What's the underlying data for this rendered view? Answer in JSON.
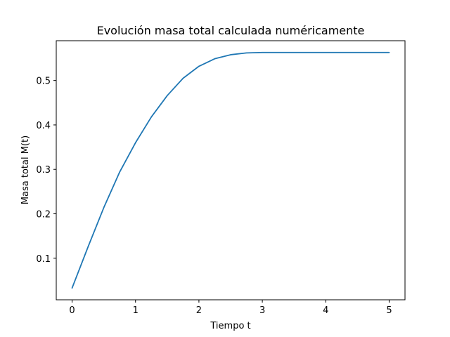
{
  "chart_data": {
    "type": "line",
    "title": "Evolución masa total calculada numéricamente",
    "xlabel": "Tiempo t",
    "ylabel": "Masa total M(t)",
    "xlim": [
      -0.25,
      5.25
    ],
    "ylim": [
      0.0065,
      0.5895
    ],
    "x_ticks": [
      0,
      1,
      2,
      3,
      4,
      5
    ],
    "x_tick_labels": [
      "0",
      "1",
      "2",
      "3",
      "4",
      "5"
    ],
    "y_ticks": [
      0.1,
      0.2,
      0.3,
      0.4,
      0.5
    ],
    "y_tick_labels": [
      "0.1",
      "0.2",
      "0.3",
      "0.4",
      "0.5"
    ],
    "grid": false,
    "series": [
      {
        "color": "#1f77b4",
        "x": [
          0,
          0.25,
          0.5,
          0.75,
          1.0,
          1.25,
          1.5,
          1.75,
          2.0,
          2.25,
          2.5,
          2.75,
          3.0,
          3.5,
          4.0,
          4.5,
          5.0
        ],
        "y": [
          0.033,
          0.125,
          0.214,
          0.294,
          0.36,
          0.418,
          0.466,
          0.505,
          0.532,
          0.549,
          0.558,
          0.562,
          0.563,
          0.563,
          0.563,
          0.563,
          0.563
        ]
      }
    ]
  }
}
